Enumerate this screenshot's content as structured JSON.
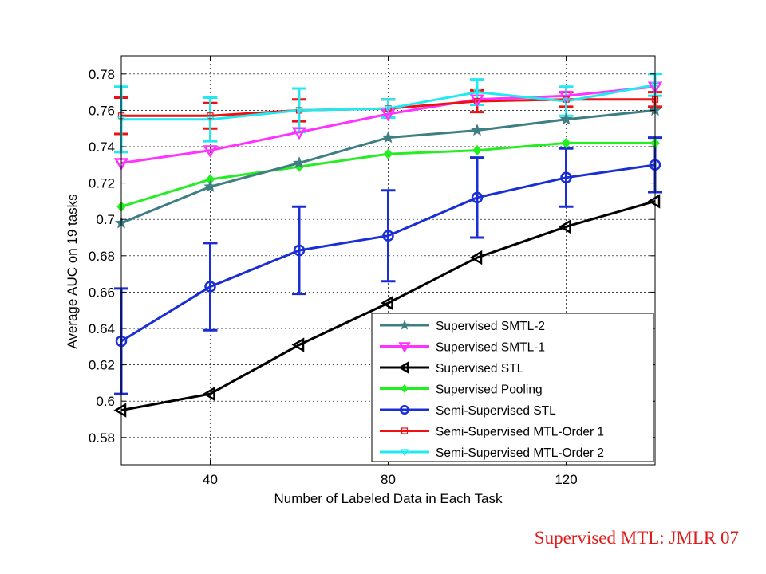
{
  "caption": "Supervised MTL: JMLR 07",
  "chart_data": {
    "type": "line",
    "xlabel": "Number of Labeled Data in Each Task",
    "ylabel": "Average AUC on 19 tasks",
    "xlim": [
      20,
      140
    ],
    "ylim": [
      0.565,
      0.79
    ],
    "xticks": [
      40,
      80,
      120
    ],
    "yticks": [
      0.58,
      0.6,
      0.62,
      0.64,
      0.66,
      0.68,
      0.7,
      0.72,
      0.74,
      0.76,
      0.78
    ],
    "ytick_labels": [
      "0.58",
      "0.6",
      "0.62",
      "0.64",
      "0.66",
      "0.68",
      "0.7",
      "0.72",
      "0.74",
      "0.76",
      "0.78"
    ],
    "grid": true,
    "legend_position": "bottom-right",
    "x": [
      20,
      40,
      60,
      80,
      100,
      120,
      140
    ],
    "series": [
      {
        "name": "Supervised SMTL-2",
        "color": "#3f7f84",
        "marker": "star",
        "values": [
          0.698,
          0.718,
          0.731,
          0.745,
          0.749,
          0.755,
          0.76
        ]
      },
      {
        "name": "Supervised SMTL-1",
        "color": "#ff33ff",
        "marker": "triangle-down",
        "values": [
          0.731,
          0.738,
          0.748,
          0.758,
          0.766,
          0.768,
          0.773
        ]
      },
      {
        "name": "Supervised STL",
        "color": "#000000",
        "marker": "triangle-left",
        "values": [
          0.595,
          0.604,
          0.631,
          0.654,
          0.679,
          0.696,
          0.71
        ]
      },
      {
        "name": "Supervised Pooling",
        "color": "#22ee22",
        "marker": "diamond",
        "values": [
          0.707,
          0.722,
          0.729,
          0.736,
          0.738,
          0.742,
          0.742
        ]
      },
      {
        "name": "Semi-Supervised STL",
        "color": "#1a2ed6",
        "marker": "circle",
        "values": [
          0.633,
          0.663,
          0.683,
          0.691,
          0.712,
          0.723,
          0.73
        ],
        "error": [
          0.029,
          0.024,
          0.024,
          0.025,
          0.022,
          0.016,
          0.015
        ]
      },
      {
        "name": "Semi-Supervised MTL-Order 1",
        "color": "#ee1111",
        "marker": "square",
        "values": [
          0.757,
          0.757,
          0.76,
          0.761,
          0.765,
          0.766,
          0.766
        ],
        "error": [
          0.01,
          0.007,
          0.006,
          0.005,
          0.006,
          0.004,
          0.004
        ]
      },
      {
        "name": "Semi-Supervised MTL-Order 2",
        "color": "#22e8f0",
        "marker": "triangle-down-small",
        "values": [
          0.755,
          0.755,
          0.76,
          0.761,
          0.77,
          0.765,
          0.774
        ],
        "error": [
          0.018,
          0.012,
          0.012,
          0.005,
          0.007,
          0.008,
          0.006
        ]
      }
    ]
  }
}
